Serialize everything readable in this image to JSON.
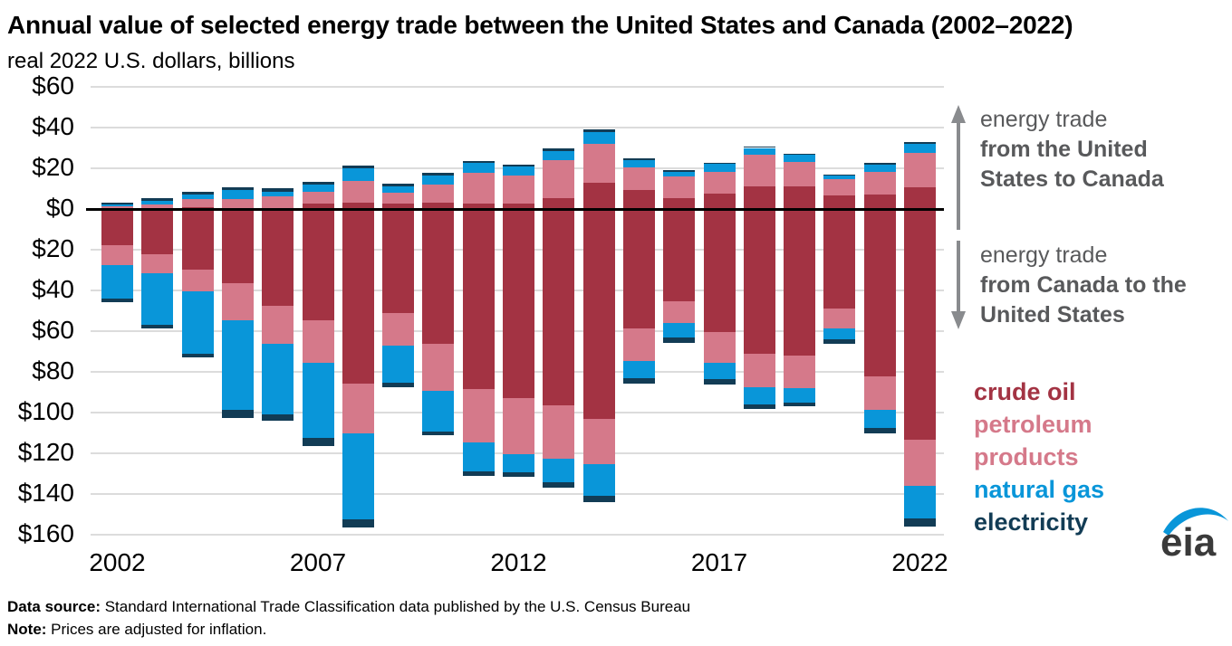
{
  "title": "Annual value of selected energy trade between the United States and Canada (2002–2022)",
  "subtitle": "real 2022 U.S. dollars, billions",
  "annotations": {
    "us_to_canada": {
      "line1": "energy trade",
      "line2": "from the United",
      "line3": "States to Canada",
      "arrow": "up-arrow",
      "color": "#58595b"
    },
    "canada_to_us": {
      "line1": "energy trade",
      "line2": "from Canada to the",
      "line3": "United States",
      "arrow": "down-arrow",
      "color": "#58595b"
    }
  },
  "legend": {
    "items": [
      {
        "label": "crude oil",
        "color": "#a33343"
      },
      {
        "label": "petroleum products",
        "color": "#d5798a"
      },
      {
        "label": "natural gas",
        "color": "#0996d9"
      },
      {
        "label": "electricity",
        "color": "#123c55"
      }
    ]
  },
  "footer": {
    "data_source_label": "Data source:",
    "data_source_text": " Standard International Trade Classification data published by the U.S. Census Bureau",
    "note_label": "Note:",
    "note_text": " Prices are adjusted for inflation."
  },
  "logo": {
    "text": "eia",
    "swoosh_color": "#0996d9",
    "text_color": "#3a3a3a"
  },
  "chart_data": {
    "type": "bar",
    "variant": "diverging-stacked",
    "units": "billion real 2022 U.S. dollars",
    "grid": true,
    "categories": [
      2002,
      2003,
      2004,
      2005,
      2006,
      2007,
      2008,
      2009,
      2010,
      2011,
      2012,
      2013,
      2014,
      2015,
      2016,
      2017,
      2018,
      2019,
      2020,
      2021,
      2022
    ],
    "x_ticks": [
      {
        "label": "2002",
        "bar_index": 0
      },
      {
        "label": "2007",
        "bar_index": 5
      },
      {
        "label": "2012",
        "bar_index": 10
      },
      {
        "label": "2017",
        "bar_index": 15
      },
      {
        "label": "2022",
        "bar_index": 20
      }
    ],
    "y_ticks": [
      {
        "label": "$60",
        "value": 60
      },
      {
        "label": "$40",
        "value": 40
      },
      {
        "label": "$20",
        "value": 20
      },
      {
        "label": "$0",
        "value": 0
      },
      {
        "label": "$20",
        "value": -20
      },
      {
        "label": "$40",
        "value": -40
      },
      {
        "label": "$60",
        "value": -60
      },
      {
        "label": "$80",
        "value": -80
      },
      {
        "label": "$100",
        "value": -100
      },
      {
        "label": "$120",
        "value": -120
      },
      {
        "label": "$140",
        "value": -140
      },
      {
        "label": "$160",
        "value": -160
      }
    ],
    "ylim": [
      -165,
      60
    ],
    "series_above_axis_us_to_canada": [
      {
        "name": "crude oil",
        "color": "#a33343",
        "values": [
          0.3,
          0.5,
          0.7,
          0.6,
          0.6,
          2.8,
          3.2,
          2.8,
          3.0,
          2.5,
          2.5,
          5.2,
          13.0,
          9.2,
          5.2,
          7.7,
          11.2,
          11.2,
          6.7,
          6.9,
          10.5
        ]
      },
      {
        "name": "petroleum products",
        "color": "#d5798a",
        "values": [
          1.2,
          1.6,
          4.1,
          4.5,
          5.6,
          5.5,
          10.4,
          5.2,
          8.8,
          15.1,
          14.1,
          18.8,
          18.8,
          11.1,
          10.8,
          10.7,
          15.6,
          12.1,
          8.0,
          11.4,
          16.9
        ]
      },
      {
        "name": "natural gas",
        "color": "#0996d9",
        "values": [
          0.9,
          2.0,
          2.1,
          4.1,
          2.4,
          3.7,
          6.2,
          3.3,
          4.6,
          4.9,
          4.4,
          4.6,
          6.1,
          3.7,
          2.2,
          3.9,
          3.2,
          3.2,
          1.7,
          3.6,
          4.4
        ]
      },
      {
        "name": "electricity",
        "color": "#123c55",
        "values": [
          0.8,
          1.3,
          1.5,
          1.5,
          1.5,
          1.3,
          1.5,
          1.2,
          1.3,
          1.0,
          0.7,
          1.0,
          1.0,
          1.0,
          0.7,
          0.5,
          0.6,
          0.7,
          0.6,
          0.9,
          0.9
        ]
      }
    ],
    "series_below_axis_canada_to_us": [
      {
        "name": "crude oil",
        "color": "#a33343",
        "values": [
          17.8,
          22.2,
          29.6,
          36.3,
          47.4,
          54.8,
          85.9,
          51.0,
          66.2,
          88.4,
          92.9,
          96.6,
          103.3,
          58.8,
          45.2,
          60.3,
          71.1,
          71.9,
          48.7,
          82.2,
          113.3
        ]
      },
      {
        "name": "petroleum products",
        "color": "#d5798a",
        "values": [
          9.6,
          9.2,
          10.8,
          18.2,
          19.0,
          20.7,
          24.4,
          16.0,
          23.3,
          26.2,
          27.4,
          26.2,
          22.2,
          16.0,
          10.7,
          15.3,
          16.6,
          16.3,
          9.8,
          16.6,
          22.5
        ]
      },
      {
        "name": "natural gas",
        "color": "#0996d9",
        "values": [
          16.7,
          25.6,
          30.7,
          44.0,
          34.4,
          37.0,
          42.1,
          18.5,
          19.7,
          14.2,
          9.2,
          11.6,
          15.3,
          8.1,
          7.0,
          8.0,
          8.1,
          6.7,
          5.5,
          8.9,
          16.3
        ]
      },
      {
        "name": "electricity",
        "color": "#123c55",
        "values": [
          1.8,
          1.8,
          1.9,
          4.1,
          3.3,
          4.0,
          4.1,
          2.2,
          1.9,
          2.2,
          2.2,
          2.5,
          3.0,
          3.0,
          2.7,
          2.7,
          2.5,
          2.1,
          2.2,
          2.5,
          4.0
        ]
      }
    ]
  }
}
